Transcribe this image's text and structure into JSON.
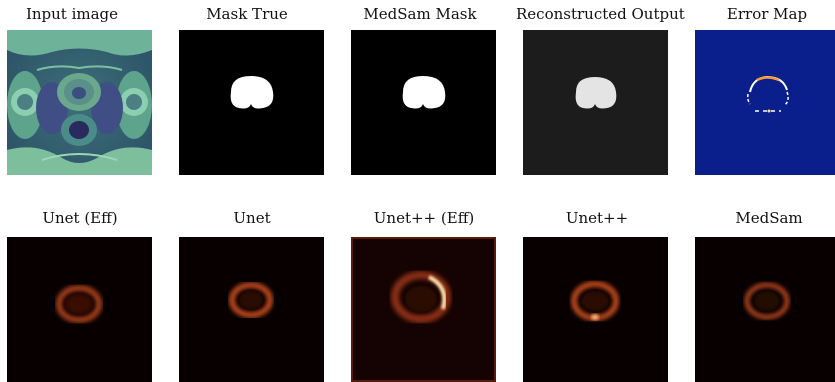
{
  "row1": {
    "titles": [
      "Input image",
      "Mask True",
      "MedSam Mask",
      "Reconstructed Output",
      "Error Map"
    ]
  },
  "row2": {
    "titles": [
      "Unet (Eff)",
      "Unet",
      "Unet++ (Eff)",
      "Unet++",
      "MedSam"
    ]
  },
  "colors": {
    "mask_background": "#000000",
    "mask_foreground": "#ffffff",
    "reconstructed_background": "#1a1a1a",
    "reconstructed_foreground": "#e6e6e6",
    "error_map_background": "#0a1f8c",
    "heatmap_background": "#080000",
    "heatmap_ring": "#b5441f",
    "heatmap_hot": "#fff2c0",
    "mri_tint": "#5c9a88"
  }
}
